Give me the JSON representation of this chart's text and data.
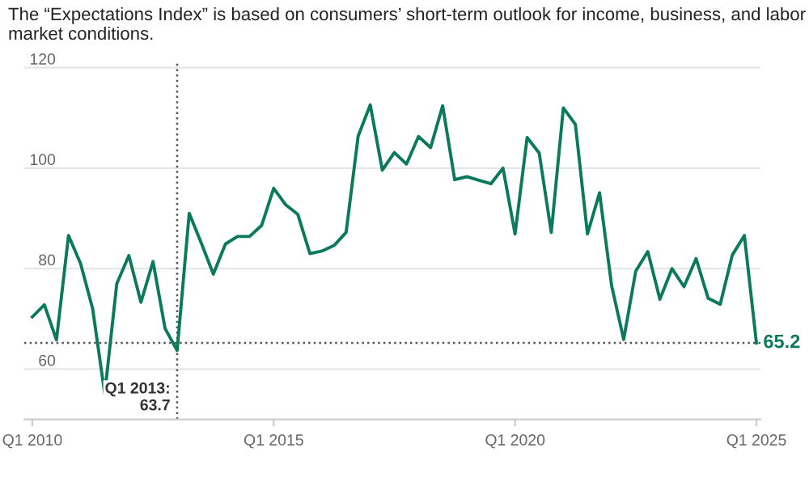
{
  "chart_data": {
    "type": "line",
    "title": "The “Expectations Index” is based on consumers’ short-term outlook for income, business, and labor market conditions.",
    "x": [
      "2010-01",
      "2010-04",
      "2010-07",
      "2010-10",
      "2011-01",
      "2011-04",
      "2011-07",
      "2011-10",
      "2012-01",
      "2012-04",
      "2012-07",
      "2012-10",
      "2013-01",
      "2013-04",
      "2013-07",
      "2013-10",
      "2014-01",
      "2014-04",
      "2014-07",
      "2014-10",
      "2015-01",
      "2015-04",
      "2015-07",
      "2015-10",
      "2016-01",
      "2016-04",
      "2016-07",
      "2016-10",
      "2017-01",
      "2017-04",
      "2017-07",
      "2017-10",
      "2018-01",
      "2018-04",
      "2018-07",
      "2018-10",
      "2019-01",
      "2019-04",
      "2019-07",
      "2019-10",
      "2020-01",
      "2020-04",
      "2020-07",
      "2020-10",
      "2021-01",
      "2021-04",
      "2021-07",
      "2021-10",
      "2022-01",
      "2022-04",
      "2022-07",
      "2022-10",
      "2023-01",
      "2023-04",
      "2023-07",
      "2023-10",
      "2024-01",
      "2024-04",
      "2024-07",
      "2024-10",
      "2025-01"
    ],
    "series": [
      {
        "color": "#0b7a5c",
        "values": [
          70.4,
          72.8,
          65.8,
          86.6,
          81.0,
          72.0,
          55.1,
          77.0,
          82.6,
          73.3,
          81.4,
          68.1,
          63.7,
          91.0,
          85.1,
          78.9,
          84.9,
          86.4,
          86.4,
          88.6,
          96.0,
          92.7,
          90.8,
          83.0,
          83.5,
          84.6,
          87.2,
          106.4,
          112.6,
          99.6,
          103.1,
          100.8,
          106.3,
          104.1,
          112.4,
          97.7,
          98.3,
          97.6,
          96.9,
          100.0,
          86.9,
          106.1,
          103.0,
          87.2,
          112.0,
          108.7,
          86.9,
          95.1,
          76.6,
          65.9,
          79.5,
          83.4,
          73.9,
          80.0,
          76.4,
          82.0,
          74.1,
          72.9,
          82.7,
          86.6,
          65.2
        ]
      }
    ],
    "xlim": [
      "2009-11",
      "2025-02"
    ],
    "xticks": [
      {
        "value": "2010-01",
        "label": "Q1 2010"
      },
      {
        "value": "2015-01",
        "label": "Q1 2015"
      },
      {
        "value": "2020-01",
        "label": "Q1 2020"
      },
      {
        "value": "2025-01",
        "label": "Q1 2025"
      }
    ],
    "ylim": [
      50,
      121
    ],
    "yticks": [
      60,
      80,
      100,
      120
    ],
    "grid": "y",
    "legend": false,
    "marker": "none",
    "line_style": "solid",
    "ref_lines": [
      {
        "axis": "x",
        "value": "2013-01",
        "label": null,
        "color": "#555555",
        "line_style": "dotted"
      },
      {
        "axis": "y",
        "value": 65.2,
        "label": null,
        "color": "#555555",
        "line_style": "dotted"
      }
    ],
    "annotations": [
      {
        "text": "Q1 2013:\n63.7",
        "x": "2013-01",
        "y": 63.7
      },
      {
        "text": "65.2",
        "x": "2025-01",
        "y": 65.2
      }
    ]
  }
}
